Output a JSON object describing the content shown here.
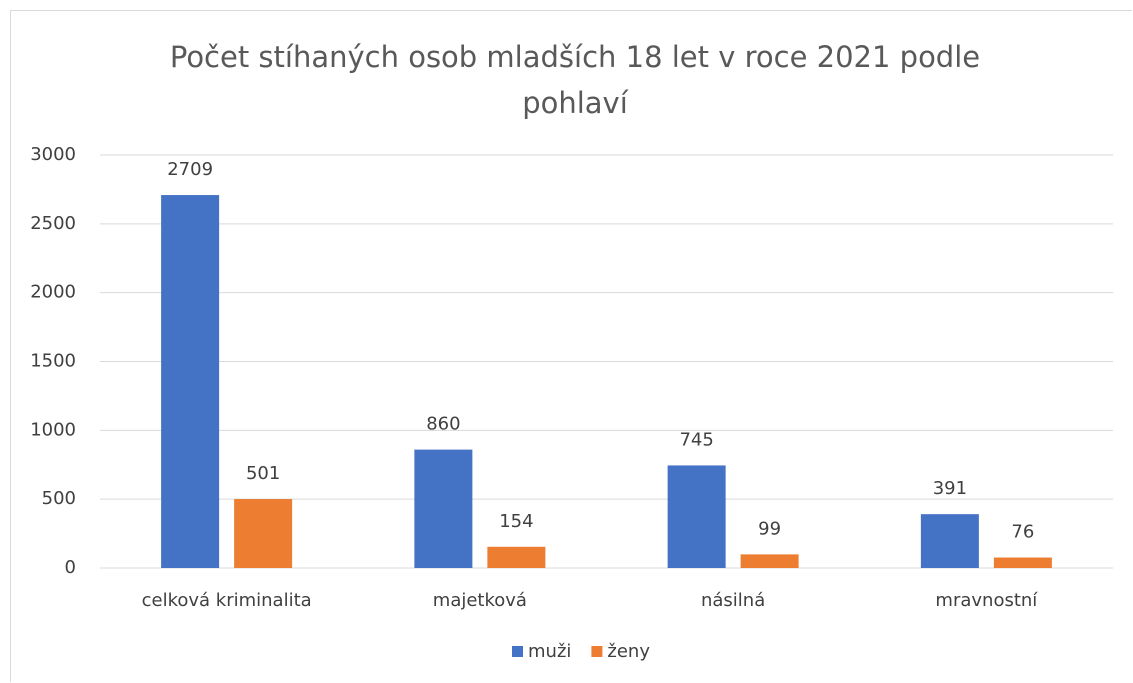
{
  "chart_data": {
    "type": "bar",
    "title": "Počet stíhaných osob mladších 18 let v roce 2021 podle pohlaví",
    "categories": [
      "celková kriminalita",
      "majetková",
      "násilná",
      "mravnostní"
    ],
    "series": [
      {
        "name": "muži",
        "color": "#4472c4",
        "values": [
          2709,
          860,
          745,
          391
        ]
      },
      {
        "name": "ženy",
        "color": "#ed7d31",
        "values": [
          501,
          154,
          99,
          76
        ]
      }
    ],
    "ylim": [
      0,
      3000
    ],
    "yticks": [
      0,
      500,
      1000,
      1500,
      2000,
      2500,
      3000
    ],
    "grid": true,
    "legend": "bottom"
  }
}
